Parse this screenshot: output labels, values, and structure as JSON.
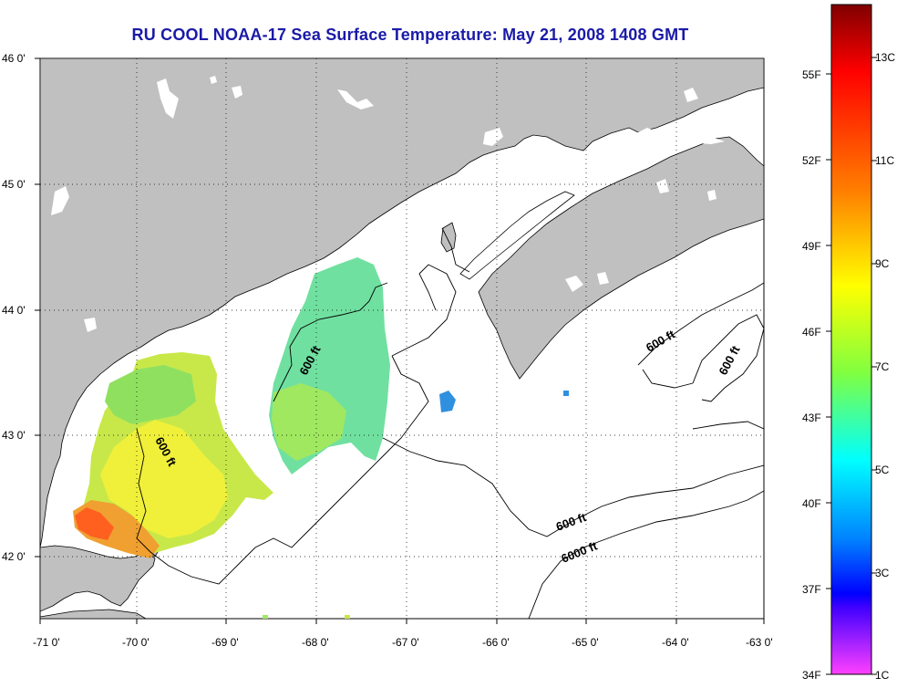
{
  "title": "RU COOL  NOAA-17  Sea Surface Temperature:  May 21, 2008 1408 GMT",
  "map": {
    "lon_range": [
      -71,
      -63
    ],
    "lat_range": [
      41.5,
      46
    ],
    "lon_ticks": [
      "-71 0'",
      "-70 0'",
      "-69 0'",
      "-68 0'",
      "-67 0'",
      "-66 0'",
      "-65 0'",
      "-64 0'",
      "-63 0'"
    ],
    "lat_ticks": [
      "46 0'",
      "45 0'",
      "44 0'",
      "43 0'",
      "42 0'"
    ],
    "grid": "dotted",
    "land_color": "#c0c0c0",
    "water_color": "#ffffff",
    "contour_labels": [
      "600 ft",
      "600 ft",
      "600 ft",
      "600 ft",
      "600 ft",
      "6000 ft"
    ]
  },
  "colorbar": {
    "fahrenheit": [
      "55F",
      "52F",
      "49F",
      "46F",
      "43F",
      "40F",
      "37F",
      "34F"
    ],
    "celsius": [
      "13C",
      "11C",
      "9C",
      "7C",
      "5C",
      "3C",
      "1C"
    ],
    "colors": [
      "#800000",
      "#ff0000",
      "#ff8000",
      "#ffff00",
      "#80ff40",
      "#00ffff",
      "#0080ff",
      "#0000ff",
      "#ff40ff"
    ]
  }
}
